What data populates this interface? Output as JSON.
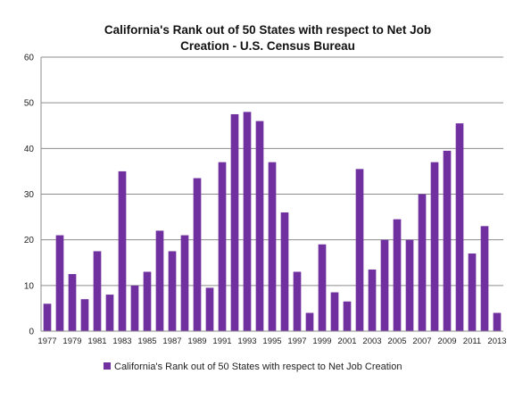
{
  "chart_data": {
    "type": "bar",
    "title_lines": [
      "California's Rank out of 50 States with respect to Net Job",
      "Creation - U.S. Census Bureau"
    ],
    "xlabel": "",
    "ylabel": "",
    "ylim": [
      0,
      60
    ],
    "yticks": [
      0,
      10,
      20,
      30,
      40,
      50,
      60
    ],
    "xtick_labels": [
      "1977",
      "1979",
      "1981",
      "1983",
      "1985",
      "1987",
      "1989",
      "1991",
      "1993",
      "1995",
      "1997",
      "1999",
      "2001",
      "2003",
      "2005",
      "2007",
      "2009",
      "2011",
      "2013"
    ],
    "categories": [
      "1977",
      "1978",
      "1979",
      "1980",
      "1981",
      "1982",
      "1983",
      "1984",
      "1985",
      "1986",
      "1987",
      "1988",
      "1989",
      "1990",
      "1991",
      "1992",
      "1993",
      "1994",
      "1995",
      "1996",
      "1997",
      "1998",
      "1999",
      "2000",
      "2001",
      "2002",
      "2003",
      "2004",
      "2005",
      "2006",
      "2007",
      "2008",
      "2009",
      "2010",
      "2011",
      "2012",
      "2013"
    ],
    "series": [
      {
        "name": "California's Rank out of 50 States with respect to Net Job Creation",
        "values": [
          6,
          21,
          12.5,
          7,
          17.5,
          8,
          35,
          10,
          13,
          22,
          17.5,
          21,
          33.5,
          9.5,
          37,
          47.5,
          48,
          46,
          37,
          26,
          13,
          4,
          19,
          8.5,
          6.5,
          35.5,
          13.5,
          20,
          24.5,
          20,
          30,
          37,
          39.5,
          45.5,
          17,
          23,
          4
        ]
      }
    ],
    "grid": "horizontal",
    "legend_position": "bottom",
    "bar_color": "#7030A0",
    "grid_color": "#8c8c8c"
  }
}
